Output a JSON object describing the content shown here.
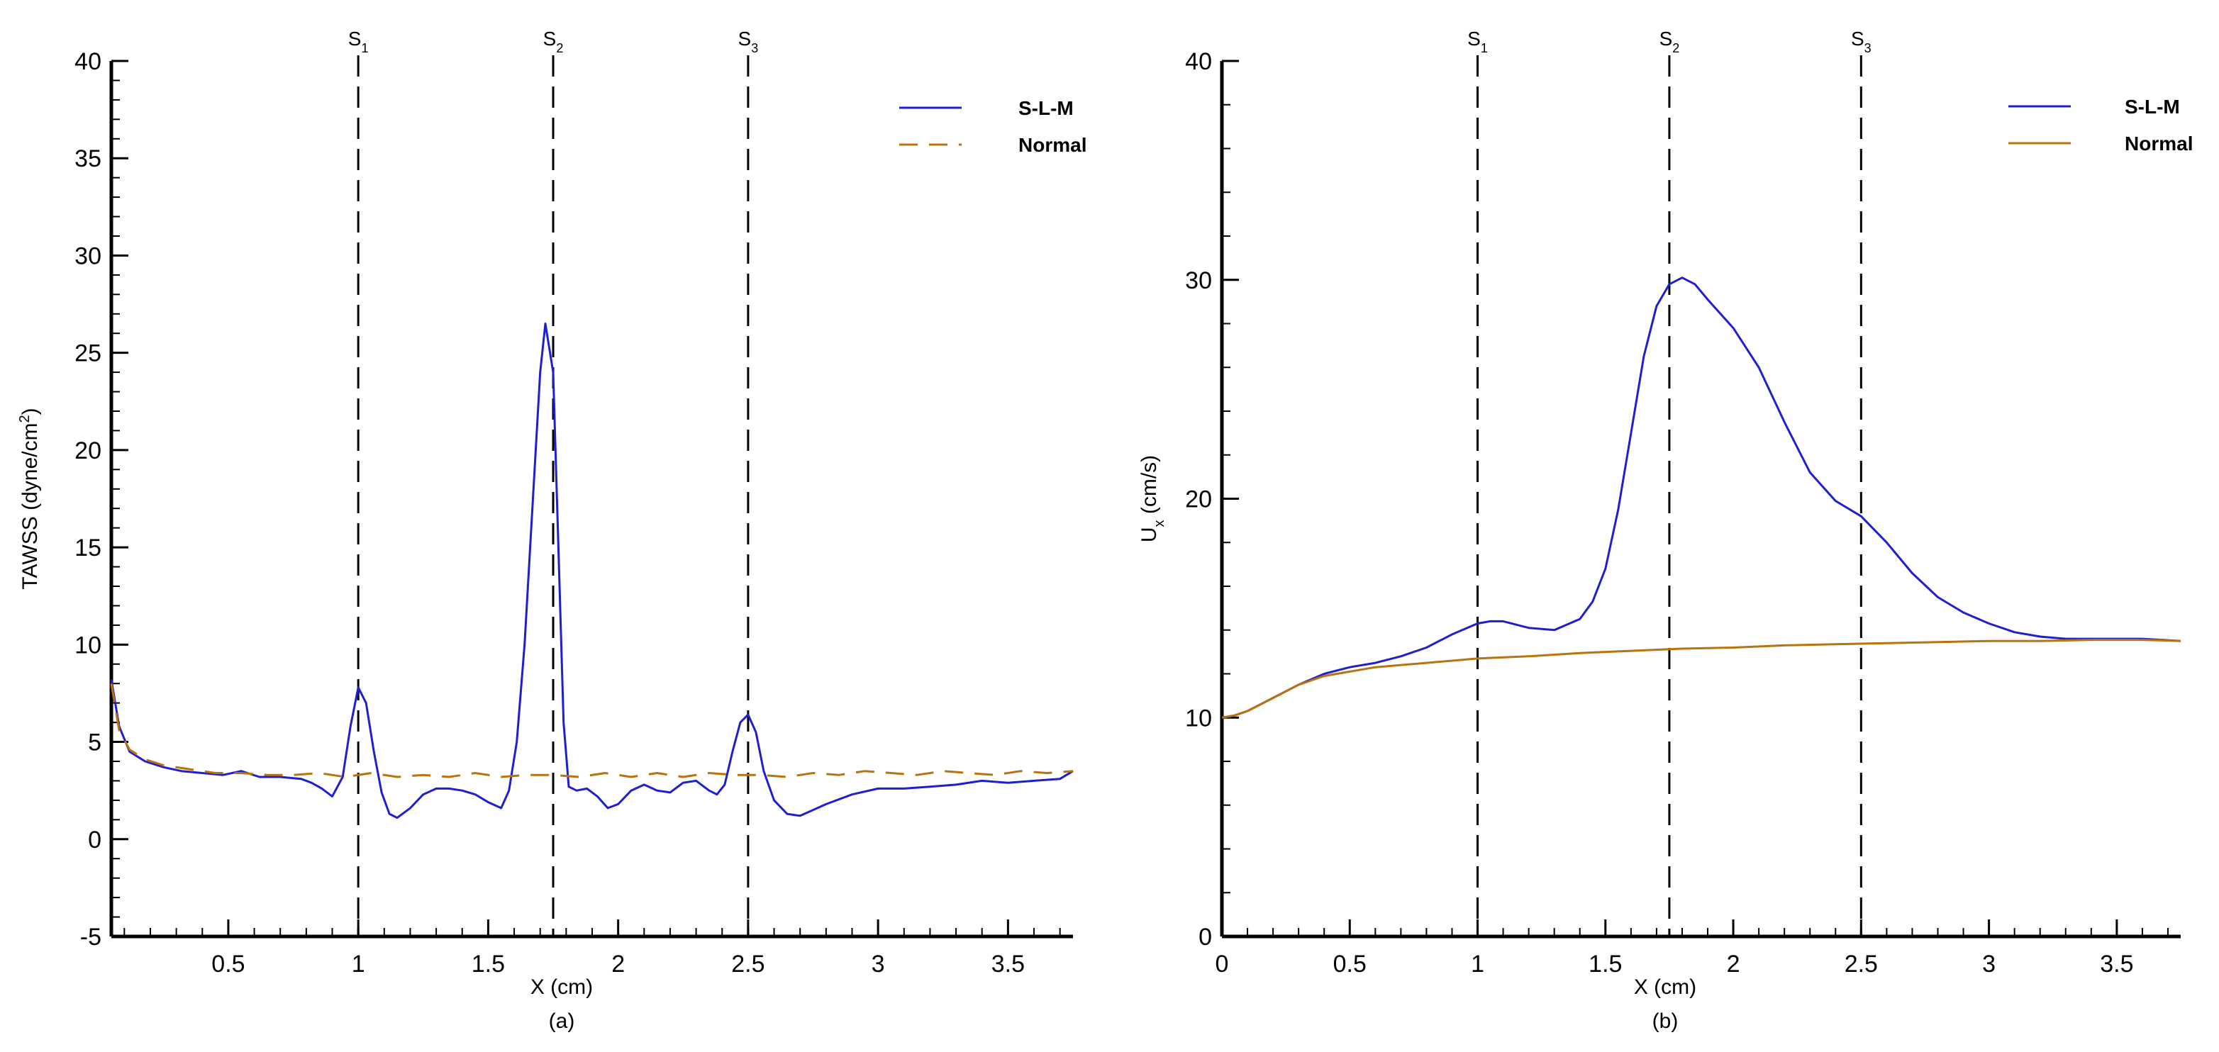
{
  "chart_data": [
    {
      "type": "line",
      "panel_label": "(a)",
      "xlabel": "X (cm)",
      "ylabel_parts": {
        "main": "TAWSS (dyne/cm",
        "sup": "2",
        "end": ")"
      },
      "xlim": [
        0.05,
        3.75
      ],
      "ylim": [
        -5,
        40
      ],
      "x_ticks": [
        0.5,
        1,
        1.5,
        2,
        2.5,
        3,
        3.5
      ],
      "x_tick_labels": [
        "0.5",
        "1",
        "1.5",
        "2",
        "2.5",
        "3",
        "3.5"
      ],
      "y_ticks": [
        -5,
        0,
        5,
        10,
        15,
        20,
        25,
        30,
        35,
        40
      ],
      "y_tick_labels": [
        "-5",
        "0",
        "5",
        "10",
        "15",
        "20",
        "25",
        "30",
        "35",
        "40"
      ],
      "grid": false,
      "legend_position": "top-right",
      "section_lines": [
        {
          "x": 1.0,
          "label": "S",
          "sub": "1"
        },
        {
          "x": 1.75,
          "label": "S",
          "sub": "2"
        },
        {
          "x": 2.5,
          "label": "S",
          "sub": "3"
        }
      ],
      "series": [
        {
          "name": "S-L-M",
          "color": "#1f1fcf",
          "style": "solid",
          "x": [
            0.05,
            0.08,
            0.12,
            0.18,
            0.25,
            0.32,
            0.4,
            0.48,
            0.55,
            0.62,
            0.7,
            0.78,
            0.82,
            0.86,
            0.9,
            0.94,
            0.97,
            1.0,
            1.03,
            1.06,
            1.09,
            1.12,
            1.15,
            1.2,
            1.25,
            1.3,
            1.35,
            1.4,
            1.45,
            1.5,
            1.55,
            1.58,
            1.61,
            1.64,
            1.67,
            1.7,
            1.72,
            1.75,
            1.77,
            1.79,
            1.81,
            1.84,
            1.88,
            1.92,
            1.96,
            2.0,
            2.05,
            2.1,
            2.15,
            2.2,
            2.25,
            2.3,
            2.35,
            2.38,
            2.41,
            2.44,
            2.47,
            2.5,
            2.53,
            2.56,
            2.6,
            2.65,
            2.7,
            2.8,
            2.9,
            3.0,
            3.1,
            3.2,
            3.3,
            3.4,
            3.5,
            3.6,
            3.7,
            3.75
          ],
          "y": [
            8.2,
            5.8,
            4.5,
            4.0,
            3.7,
            3.5,
            3.4,
            3.3,
            3.5,
            3.2,
            3.2,
            3.1,
            2.9,
            2.6,
            2.2,
            3.2,
            5.8,
            7.8,
            7.0,
            4.5,
            2.4,
            1.3,
            1.1,
            1.6,
            2.3,
            2.6,
            2.6,
            2.5,
            2.3,
            1.9,
            1.6,
            2.5,
            5.0,
            10.0,
            17.0,
            24.0,
            26.5,
            24.0,
            15.0,
            6.0,
            2.7,
            2.5,
            2.6,
            2.2,
            1.6,
            1.8,
            2.5,
            2.8,
            2.5,
            2.4,
            2.9,
            3.0,
            2.5,
            2.3,
            2.8,
            4.5,
            6.0,
            6.4,
            5.5,
            3.5,
            2.0,
            1.3,
            1.2,
            1.8,
            2.3,
            2.6,
            2.6,
            2.7,
            2.8,
            3.0,
            2.9,
            3.0,
            3.1,
            3.5
          ]
        },
        {
          "name": "Normal",
          "color": "#b8730e",
          "style": "dashed",
          "x": [
            0.05,
            0.08,
            0.12,
            0.18,
            0.25,
            0.35,
            0.45,
            0.55,
            0.65,
            0.75,
            0.85,
            0.95,
            1.05,
            1.15,
            1.25,
            1.35,
            1.45,
            1.55,
            1.65,
            1.75,
            1.85,
            1.95,
            2.05,
            2.15,
            2.25,
            2.35,
            2.45,
            2.55,
            2.65,
            2.75,
            2.85,
            2.95,
            3.05,
            3.15,
            3.25,
            3.35,
            3.45,
            3.55,
            3.65,
            3.75
          ],
          "y": [
            8.0,
            5.6,
            4.6,
            4.1,
            3.8,
            3.6,
            3.4,
            3.4,
            3.3,
            3.3,
            3.4,
            3.2,
            3.4,
            3.2,
            3.3,
            3.2,
            3.4,
            3.2,
            3.3,
            3.3,
            3.2,
            3.4,
            3.2,
            3.4,
            3.2,
            3.4,
            3.3,
            3.3,
            3.2,
            3.4,
            3.3,
            3.5,
            3.4,
            3.3,
            3.5,
            3.4,
            3.3,
            3.5,
            3.4,
            3.5
          ]
        }
      ]
    },
    {
      "type": "line",
      "panel_label": "(b)",
      "xlabel": "X (cm)",
      "ylabel_parts": {
        "main": "U",
        "sub": "x",
        "end": " (cm/s)"
      },
      "xlim": [
        0,
        3.75
      ],
      "ylim": [
        0,
        40
      ],
      "x_ticks": [
        0,
        0.5,
        1,
        1.5,
        2,
        2.5,
        3,
        3.5
      ],
      "x_tick_labels": [
        "0",
        "0.5",
        "1",
        "1.5",
        "2",
        "2.5",
        "3",
        "3.5"
      ],
      "y_ticks": [
        0,
        10,
        20,
        30,
        40
      ],
      "y_tick_labels": [
        "0",
        "10",
        "20",
        "30",
        "40"
      ],
      "grid": false,
      "legend_position": "top-right",
      "section_lines": [
        {
          "x": 1.0,
          "label": "S",
          "sub": "1"
        },
        {
          "x": 1.75,
          "label": "S",
          "sub": "2"
        },
        {
          "x": 2.5,
          "label": "S",
          "sub": "3"
        }
      ],
      "series": [
        {
          "name": "S-L-M",
          "color": "#1f1fcf",
          "style": "solid",
          "x": [
            0,
            0.05,
            0.1,
            0.2,
            0.3,
            0.4,
            0.5,
            0.6,
            0.7,
            0.8,
            0.9,
            1.0,
            1.05,
            1.1,
            1.2,
            1.3,
            1.4,
            1.45,
            1.5,
            1.55,
            1.6,
            1.65,
            1.7,
            1.75,
            1.8,
            1.85,
            1.9,
            2.0,
            2.1,
            2.2,
            2.3,
            2.4,
            2.5,
            2.6,
            2.7,
            2.8,
            2.9,
            3.0,
            3.1,
            3.2,
            3.3,
            3.4,
            3.5,
            3.6,
            3.75
          ],
          "y": [
            10.0,
            10.1,
            10.3,
            10.9,
            11.5,
            12.0,
            12.3,
            12.5,
            12.8,
            13.2,
            13.8,
            14.3,
            14.4,
            14.4,
            14.1,
            14.0,
            14.5,
            15.3,
            16.8,
            19.5,
            23.0,
            26.5,
            28.8,
            29.8,
            30.1,
            29.8,
            29.1,
            27.8,
            26.0,
            23.5,
            21.2,
            19.9,
            19.2,
            18.0,
            16.6,
            15.5,
            14.8,
            14.3,
            13.9,
            13.7,
            13.6,
            13.6,
            13.6,
            13.6,
            13.5
          ]
        },
        {
          "name": "Normal",
          "color": "#b8730e",
          "style": "solid",
          "x": [
            0,
            0.05,
            0.1,
            0.2,
            0.3,
            0.4,
            0.5,
            0.6,
            0.7,
            0.8,
            0.9,
            1.0,
            1.2,
            1.4,
            1.6,
            1.8,
            2.0,
            2.2,
            2.4,
            2.6,
            2.8,
            3.0,
            3.2,
            3.4,
            3.6,
            3.75
          ],
          "y": [
            10.0,
            10.1,
            10.3,
            10.9,
            11.5,
            11.9,
            12.1,
            12.3,
            12.4,
            12.5,
            12.6,
            12.7,
            12.8,
            12.95,
            13.05,
            13.15,
            13.2,
            13.3,
            13.35,
            13.4,
            13.45,
            13.5,
            13.5,
            13.55,
            13.55,
            13.5
          ]
        }
      ]
    }
  ]
}
